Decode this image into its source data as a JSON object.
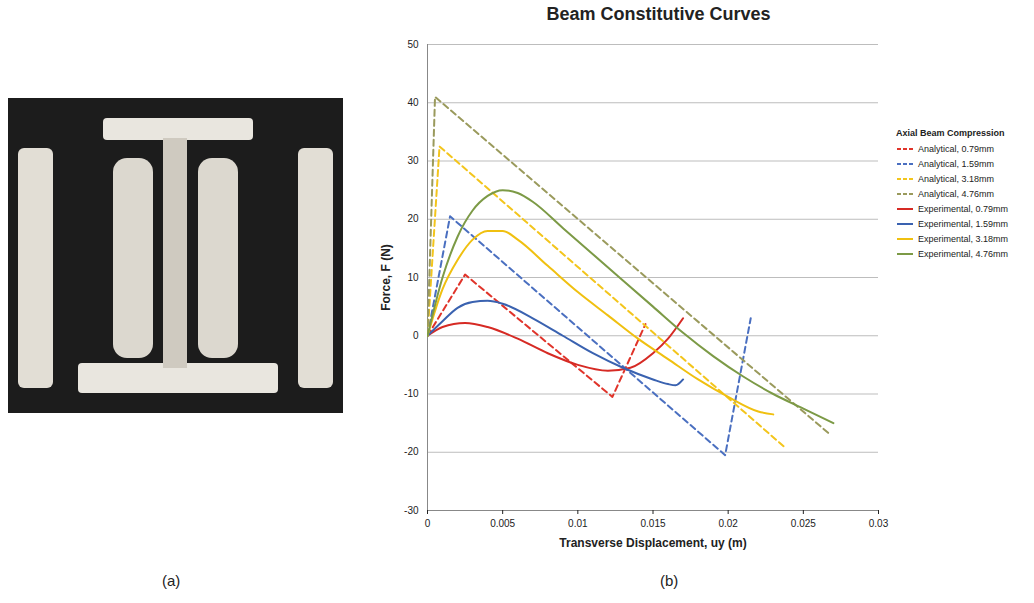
{
  "panel_labels": [
    "(a)",
    "(b)"
  ],
  "chart_data": {
    "type": "line",
    "title": "Beam Constitutive Curves",
    "x_label": "Transverse Displacement, uy (m)",
    "y_label": "Force, F (N)",
    "legend_title": "Axial Beam Compression",
    "legend": "right",
    "grid": true,
    "xlim": [
      0,
      0.03
    ],
    "xticks": [
      0,
      0.005,
      0.01,
      0.015,
      0.02,
      0.025,
      0.03
    ],
    "ylim": [
      -30,
      50
    ],
    "yticks": [
      -30,
      -20,
      -10,
      0,
      10,
      20,
      30,
      40,
      50
    ],
    "series": [
      {
        "name": "Analytical, 0.79mm",
        "color": "#e0342a",
        "line_style": "dashed",
        "x": [
          0,
          0.0025,
          0.0123,
          0.0145
        ],
        "values": [
          0,
          10.5,
          -10.5,
          2
        ]
      },
      {
        "name": "Analytical, 1.59mm",
        "color": "#4a6fc0",
        "line_style": "dashed",
        "x": [
          0,
          0.0015,
          0.0198,
          0.0215
        ],
        "values": [
          0,
          20.5,
          -20.5,
          3
        ]
      },
      {
        "name": "Analytical, 3.18mm",
        "color": "#f3c51c",
        "line_style": "dashed",
        "x": [
          0,
          0.0008,
          0.0237
        ],
        "values": [
          0,
          32.5,
          -19
        ]
      },
      {
        "name": "Analytical, 4.76mm",
        "color": "#9a9a5c",
        "line_style": "dashed",
        "x": [
          0,
          0.0005,
          0.0268
        ],
        "values": [
          0,
          41,
          -17
        ]
      },
      {
        "name": "Experimental, 0.79mm",
        "color": "#d62a24",
        "line_style": "solid",
        "x": [
          0,
          0.001,
          0.0025,
          0.004,
          0.006,
          0.008,
          0.01,
          0.012,
          0.0135,
          0.015,
          0.016,
          0.017
        ],
        "values": [
          0,
          1.5,
          2.2,
          1.5,
          -0.5,
          -3,
          -5,
          -6,
          -5.5,
          -3,
          -0.5,
          3
        ]
      },
      {
        "name": "Experimental, 1.59mm",
        "color": "#3a62b0",
        "line_style": "solid",
        "x": [
          0,
          0.001,
          0.002,
          0.003,
          0.004,
          0.005,
          0.007,
          0.009,
          0.011,
          0.013,
          0.015,
          0.016,
          0.0165,
          0.017
        ],
        "values": [
          0,
          2.5,
          4.8,
          5.8,
          6,
          5.5,
          3,
          0,
          -3,
          -5.5,
          -7.5,
          -8.3,
          -8.5,
          -7.5
        ]
      },
      {
        "name": "Experimental, 3.18mm",
        "color": "#f0c010",
        "line_style": "solid",
        "x": [
          0,
          0.001,
          0.002,
          0.003,
          0.004,
          0.005,
          0.006,
          0.008,
          0.01,
          0.012,
          0.014,
          0.016,
          0.018,
          0.02,
          0.022,
          0.023
        ],
        "values": [
          0,
          8,
          13,
          16.5,
          18,
          18,
          16.5,
          12,
          7.5,
          3.5,
          -0.5,
          -4,
          -7.5,
          -10.5,
          -13,
          -13.5
        ]
      },
      {
        "name": "Experimental, 4.76mm",
        "color": "#7c9a46",
        "line_style": "solid",
        "x": [
          0,
          0.001,
          0.002,
          0.003,
          0.004,
          0.005,
          0.006,
          0.007,
          0.009,
          0.011,
          0.013,
          0.015,
          0.017,
          0.019,
          0.021,
          0.023,
          0.025,
          0.027
        ],
        "values": [
          0,
          10,
          17,
          21.5,
          24,
          25,
          24.5,
          23,
          18.5,
          14,
          9.5,
          5,
          0.5,
          -3.5,
          -7,
          -10,
          -12.5,
          -15
        ]
      }
    ]
  }
}
